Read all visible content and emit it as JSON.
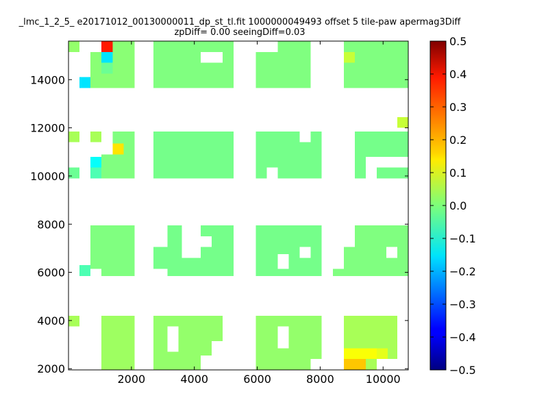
{
  "chart_data": {
    "type": "heatmap",
    "title": "_lmc_1_2_5_ e20171012_00130000011_dp_st_tl.fit 1000000049493 offset 5 tile-paw apermag3Diff",
    "subtitle": "zpDiff= 0.00 seeingDiff=0.03",
    "xlabel": "",
    "ylabel": "",
    "x_ticks": [
      2000,
      4000,
      6000,
      8000,
      10000
    ],
    "y_ticks": [
      2000,
      4000,
      6000,
      8000,
      10000,
      12000,
      14000
    ],
    "xlim": [
      0,
      10800
    ],
    "ylim": [
      1950,
      15600
    ],
    "colorbar": {
      "colormap": "jet",
      "range": [
        -0.5,
        0.5
      ],
      "ticks": [
        "0.5",
        "0.4",
        "0.3",
        "0.2",
        "0.1",
        "0.0",
        "−0.1",
        "−0.2",
        "−0.3",
        "−0.4",
        "−0.5"
      ]
    },
    "cell_width": 350,
    "cell_height": 450,
    "regions": [
      {
        "x": [
          0,
          350
        ],
        "y": [
          15150,
          15600
        ],
        "value": 0.02
      },
      {
        "x": [
          700,
          2100
        ],
        "y": [
          13650,
          15600
        ],
        "value": 0.01
      },
      {
        "x": [
          2700,
          5250
        ],
        "y": [
          13650,
          15600
        ],
        "value": 0.0
      },
      {
        "x": [
          5950,
          7700
        ],
        "y": [
          13650,
          15600
        ],
        "value": 0.0
      },
      {
        "x": [
          8750,
          10800
        ],
        "y": [
          13650,
          15600
        ],
        "value": 0.0
      },
      {
        "x": [
          0,
          350
        ],
        "y": [
          11400,
          11850
        ],
        "value": 0.04
      },
      {
        "x": [
          700,
          1050
        ],
        "y": [
          11400,
          11850
        ],
        "value": 0.04
      },
      {
        "x": [
          1400,
          2100
        ],
        "y": [
          9900,
          11850
        ],
        "value": 0.0
      },
      {
        "x": [
          1050,
          1400
        ],
        "y": [
          9900,
          10900
        ],
        "value": 0.0
      },
      {
        "x": [
          0,
          350
        ],
        "y": [
          9900,
          10350
        ],
        "value": -0.02
      },
      {
        "x": [
          2700,
          5250
        ],
        "y": [
          9900,
          11850
        ],
        "value": -0.01
      },
      {
        "x": [
          5950,
          8050
        ],
        "y": [
          9900,
          11850
        ],
        "value": -0.01
      },
      {
        "x": [
          9100,
          10800
        ],
        "y": [
          9900,
          11850
        ],
        "value": -0.01
      },
      {
        "x": [
          700,
          2100
        ],
        "y": [
          5850,
          7950
        ],
        "value": 0.0
      },
      {
        "x": [
          2700,
          5250
        ],
        "y": [
          5850,
          7950
        ],
        "value": -0.01
      },
      {
        "x": [
          5950,
          8050
        ],
        "y": [
          5850,
          7950
        ],
        "value": -0.01
      },
      {
        "x": [
          8400,
          10800
        ],
        "y": [
          5850,
          7950
        ],
        "value": 0.0
      },
      {
        "x": [
          0,
          350
        ],
        "y": [
          3750,
          4200
        ],
        "value": 0.04
      },
      {
        "x": [
          1050,
          2100
        ],
        "y": [
          1950,
          4200
        ],
        "value": 0.03
      },
      {
        "x": [
          2700,
          4900
        ],
        "y": [
          1950,
          4200
        ],
        "value": 0.02
      },
      {
        "x": [
          5950,
          8050
        ],
        "y": [
          1950,
          4200
        ],
        "value": 0.02
      },
      {
        "x": [
          8750,
          10450
        ],
        "y": [
          1950,
          4200
        ],
        "value": 0.04
      }
    ],
    "holes": [
      {
        "x": [
          700,
          1050
        ],
        "y": [
          15150,
          15600
        ]
      },
      {
        "x": [
          4200,
          4900
        ],
        "y": [
          14700,
          15150
        ]
      },
      {
        "x": [
          5950,
          6650
        ],
        "y": [
          15150,
          15600
        ]
      },
      {
        "x": [
          10450,
          10800
        ],
        "y": [
          12000,
          12450
        ]
      },
      {
        "x": [
          6300,
          6650
        ],
        "y": [
          9900,
          10350
        ]
      },
      {
        "x": [
          7350,
          7700
        ],
        "y": [
          11400,
          11850
        ]
      },
      {
        "x": [
          9450,
          10800
        ],
        "y": [
          10350,
          10800
        ]
      },
      {
        "x": [
          9450,
          9800
        ],
        "y": [
          9900,
          10350
        ]
      },
      {
        "x": [
          2700,
          3150
        ],
        "y": [
          7050,
          7950
        ]
      },
      {
        "x": [
          2700,
          3150
        ],
        "y": [
          5850,
          6150
        ]
      },
      {
        "x": [
          3600,
          4200
        ],
        "y": [
          6600,
          7950
        ]
      },
      {
        "x": [
          4200,
          4550
        ],
        "y": [
          7050,
          7500
        ]
      },
      {
        "x": [
          6650,
          7000
        ],
        "y": [
          6150,
          6750
        ]
      },
      {
        "x": [
          7350,
          7700
        ],
        "y": [
          6600,
          7050
        ]
      },
      {
        "x": [
          8400,
          8750
        ],
        "y": [
          6150,
          7950
        ]
      },
      {
        "x": [
          8750,
          9100
        ],
        "y": [
          7050,
          7950
        ]
      },
      {
        "x": [
          10100,
          10450
        ],
        "y": [
          6600,
          7050
        ]
      },
      {
        "x": [
          700,
          1050
        ],
        "y": [
          5850,
          6150
        ]
      },
      {
        "x": [
          3150,
          3500
        ],
        "y": [
          2700,
          3750
        ]
      },
      {
        "x": [
          4550,
          4900
        ],
        "y": [
          1950,
          3150
        ]
      },
      {
        "x": [
          4200,
          4550
        ],
        "y": [
          1950,
          2550
        ]
      },
      {
        "x": [
          6650,
          7000
        ],
        "y": [
          2850,
          3750
        ]
      },
      {
        "x": [
          7700,
          8050
        ],
        "y": [
          1950,
          2400
        ]
      },
      {
        "x": [
          9800,
          10450
        ],
        "y": [
          1950,
          2400
        ]
      }
    ],
    "cells": [
      {
        "x": 1050,
        "y": 15150,
        "value": 0.35
      },
      {
        "x": 1050,
        "y": 14700,
        "value": -0.15
      },
      {
        "x": 1050,
        "y": 14250,
        "value": -0.02
      },
      {
        "x": 350,
        "y": 13650,
        "value": -0.15
      },
      {
        "x": 10450,
        "y": 12000,
        "value": 0.07
      },
      {
        "x": 1400,
        "y": 10900,
        "value": 0.15
      },
      {
        "x": 700,
        "y": 10350,
        "value": -0.12
      },
      {
        "x": 700,
        "y": 9900,
        "value": -0.05
      },
      {
        "x": 350,
        "y": 5850,
        "value": -0.05
      },
      {
        "x": 8750,
        "y": 14700,
        "value": 0.07
      },
      {
        "x": 8750,
        "y": 1950,
        "value": 0.18
      },
      {
        "x": 9100,
        "y": 1950,
        "value": 0.18
      },
      {
        "x": 8750,
        "y": 2400,
        "value": 0.12
      },
      {
        "x": 9100,
        "y": 2400,
        "value": 0.12
      },
      {
        "x": 9450,
        "y": 2400,
        "value": 0.12
      },
      {
        "x": 9800,
        "y": 2400,
        "value": 0.1
      }
    ]
  }
}
